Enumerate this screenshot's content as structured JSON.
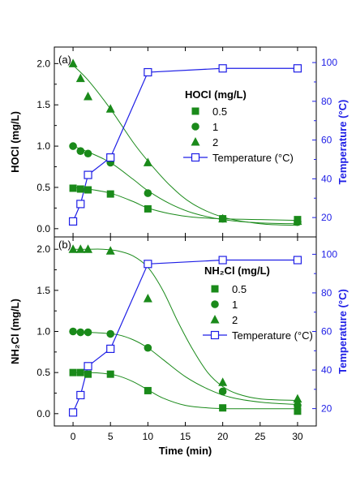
{
  "chart_data": [
    {
      "type": "scatter",
      "panel_label": "(a)",
      "xlim": [
        -2.5,
        32.5
      ],
      "ylim": [
        -0.1,
        2.2
      ],
      "yticks": [
        "0.0",
        "0.5",
        "1.0",
        "1.5",
        "2.0"
      ],
      "y2lim": [
        10,
        108
      ],
      "y2ticks": [
        "20",
        "40",
        "60",
        "80",
        "100"
      ],
      "ylabel": "HOCl (mg/L)",
      "y2label": "Temperature (°C)",
      "legend_title": "HOCl (mg/L)",
      "legend_placement": "right-middle",
      "series": [
        {
          "name": "0.5",
          "marker": "square",
          "color": "#1a8a1a",
          "x": [
            0,
            1,
            2,
            5,
            10,
            20,
            30
          ],
          "y": [
            0.49,
            0.48,
            0.47,
            0.42,
            0.24,
            0.12,
            0.11
          ]
        },
        {
          "name": "1",
          "marker": "circle",
          "color": "#1a8a1a",
          "x": [
            0,
            1,
            2,
            5,
            10,
            20,
            30
          ],
          "y": [
            1.0,
            0.94,
            0.91,
            0.8,
            0.43,
            0.12,
            0.08
          ]
        },
        {
          "name": "2",
          "marker": "triangle",
          "color": "#1a8a1a",
          "x": [
            0,
            1,
            2,
            5,
            10,
            20,
            30
          ],
          "y": [
            2.0,
            1.82,
            1.6,
            1.45,
            0.8,
            0.12,
            0.09
          ]
        },
        {
          "name": "Temperature (°C)",
          "marker": "open-square",
          "color": "#1e1ee6",
          "axis": "right",
          "x": [
            0,
            1,
            2,
            5,
            10,
            20,
            30
          ],
          "y": [
            18,
            27,
            42,
            51,
            95,
            97,
            97
          ]
        }
      ],
      "fits": [
        {
          "series": "0.5",
          "color": "#1a8a1a",
          "x": [
            0,
            2,
            5,
            8,
            10,
            13,
            16,
            20,
            25,
            30
          ],
          "y": [
            0.5,
            0.48,
            0.43,
            0.33,
            0.25,
            0.18,
            0.14,
            0.12,
            0.11,
            0.1
          ]
        },
        {
          "series": "1",
          "color": "#1a8a1a",
          "x": [
            0,
            2,
            5,
            8,
            10,
            13,
            16,
            20,
            25,
            30
          ],
          "y": [
            1.0,
            0.93,
            0.8,
            0.6,
            0.46,
            0.3,
            0.19,
            0.11,
            0.07,
            0.06
          ]
        },
        {
          "series": "2",
          "color": "#1a8a1a",
          "x": [
            0,
            2,
            5,
            8,
            10,
            13,
            16,
            20,
            25,
            30
          ],
          "y": [
            1.98,
            1.8,
            1.45,
            1.05,
            0.82,
            0.52,
            0.3,
            0.14,
            0.06,
            0.04
          ]
        }
      ]
    },
    {
      "type": "scatter",
      "panel_label": "(b)",
      "xlim": [
        -2.5,
        32.5
      ],
      "xticks": [
        "0",
        "5",
        "10",
        "15",
        "20",
        "25",
        "30"
      ],
      "xlabel": "Time (min)",
      "ylim": [
        -0.15,
        2.15
      ],
      "yticks": [
        "0.0",
        "0.5",
        "1.0",
        "1.5",
        "2.0"
      ],
      "y2lim": [
        11,
        109
      ],
      "y2ticks": [
        "20",
        "40",
        "60",
        "80",
        "100"
      ],
      "ylabel": "NH₂Cl (mg/L)",
      "y2label": "Temperature (°C)",
      "legend_title": "NH₂Cl (mg/L)",
      "legend_placement": "right-middle",
      "series": [
        {
          "name": "0.5",
          "marker": "square",
          "color": "#1a8a1a",
          "x": [
            0,
            1,
            2,
            5,
            10,
            20,
            30
          ],
          "y": [
            0.5,
            0.5,
            0.48,
            0.48,
            0.28,
            0.07,
            0.03
          ]
        },
        {
          "name": "1",
          "marker": "circle",
          "color": "#1a8a1a",
          "x": [
            0,
            1,
            2,
            5,
            10,
            20,
            30
          ],
          "y": [
            1.0,
            0.99,
            0.99,
            0.97,
            0.8,
            0.27,
            0.1
          ]
        },
        {
          "name": "2",
          "marker": "triangle",
          "color": "#1a8a1a",
          "x": [
            0,
            1,
            2,
            5,
            10,
            20,
            30
          ],
          "y": [
            2.0,
            2.0,
            2.0,
            1.98,
            1.4,
            0.38,
            0.18
          ]
        },
        {
          "name": "Temperature (°C)",
          "marker": "open-square",
          "color": "#1e1ee6",
          "axis": "right",
          "x": [
            0,
            1,
            2,
            5,
            10,
            20,
            30
          ],
          "y": [
            18,
            27,
            42,
            51,
            95,
            97,
            97
          ]
        }
      ],
      "fits": [
        {
          "series": "0.5",
          "color": "#1a8a1a",
          "x": [
            0,
            2,
            4,
            6,
            8,
            10,
            12,
            15,
            18,
            21,
            25,
            30
          ],
          "y": [
            0.5,
            0.5,
            0.49,
            0.46,
            0.39,
            0.29,
            0.19,
            0.1,
            0.07,
            0.06,
            0.06,
            0.06
          ]
        },
        {
          "series": "1",
          "color": "#1a8a1a",
          "x": [
            0,
            2,
            4,
            6,
            8,
            10,
            12,
            15,
            18,
            21,
            25,
            30
          ],
          "y": [
            1.0,
            0.99,
            0.98,
            0.96,
            0.9,
            0.8,
            0.66,
            0.45,
            0.3,
            0.2,
            0.14,
            0.11
          ]
        },
        {
          "series": "2",
          "color": "#1a8a1a",
          "x": [
            0,
            2,
            4,
            6,
            8,
            10,
            12,
            14,
            16,
            18,
            20,
            22,
            25,
            30
          ],
          "y": [
            2.0,
            2.0,
            2.0,
            1.98,
            1.92,
            1.78,
            1.5,
            1.12,
            0.78,
            0.5,
            0.33,
            0.24,
            0.18,
            0.16
          ]
        }
      ]
    }
  ]
}
